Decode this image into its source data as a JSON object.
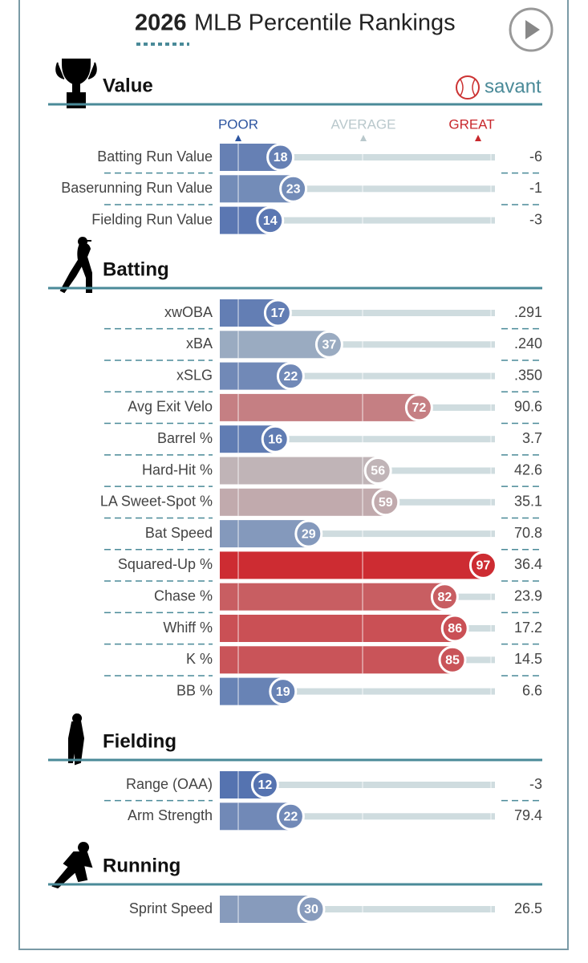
{
  "title_year": "2026",
  "title": "MLB Percentile Rankings",
  "logo": "savant",
  "legend": {
    "poor": "POOR",
    "average": "AVERAGE",
    "great": "GREAT"
  },
  "sections": [
    {
      "title": "Value",
      "rows": [
        {
          "label": "Batting Run Value",
          "percentile": 18,
          "value": "-6"
        },
        {
          "label": "Baserunning Run Value",
          "percentile": 23,
          "value": "-1"
        },
        {
          "label": "Fielding Run Value",
          "percentile": 14,
          "value": "-3"
        }
      ]
    },
    {
      "title": "Batting",
      "rows": [
        {
          "label": "xwOBA",
          "percentile": 17,
          "value": ".291"
        },
        {
          "label": "xBA",
          "percentile": 37,
          "value": ".240"
        },
        {
          "label": "xSLG",
          "percentile": 22,
          "value": ".350"
        },
        {
          "label": "Avg Exit Velo",
          "percentile": 72,
          "value": "90.6"
        },
        {
          "label": "Barrel %",
          "percentile": 16,
          "value": "3.7"
        },
        {
          "label": "Hard-Hit %",
          "percentile": 56,
          "value": "42.6"
        },
        {
          "label": "LA Sweet-Spot %",
          "percentile": 59,
          "value": "35.1"
        },
        {
          "label": "Bat Speed",
          "percentile": 29,
          "value": "70.8"
        },
        {
          "label": "Squared-Up %",
          "percentile": 97,
          "value": "36.4"
        },
        {
          "label": "Chase %",
          "percentile": 82,
          "value": "23.9"
        },
        {
          "label": "Whiff %",
          "percentile": 86,
          "value": "17.2"
        },
        {
          "label": "K %",
          "percentile": 85,
          "value": "14.5"
        },
        {
          "label": "BB %",
          "percentile": 19,
          "value": "6.6"
        }
      ]
    },
    {
      "title": "Fielding",
      "rows": [
        {
          "label": "Range (OAA)",
          "percentile": 12,
          "value": "-3"
        },
        {
          "label": "Arm Strength",
          "percentile": 22,
          "value": "79.4"
        }
      ]
    },
    {
      "title": "Running",
      "rows": [
        {
          "label": "Sprint Speed",
          "percentile": 30,
          "value": "26.5"
        }
      ]
    }
  ]
}
